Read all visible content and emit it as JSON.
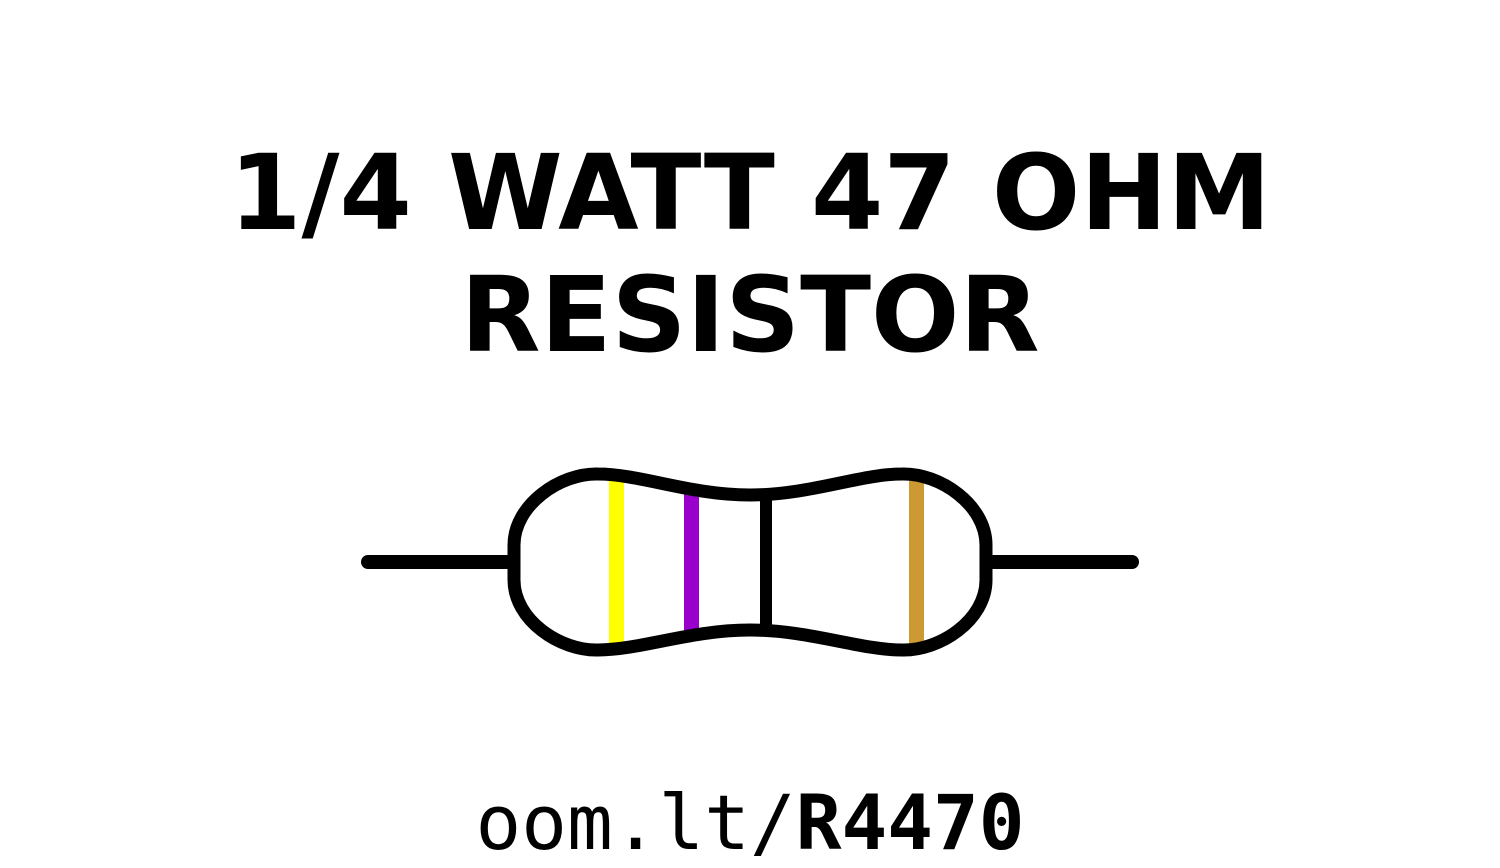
{
  "title": {
    "line1": "1/4 WATT 47 OHM",
    "line2": "RESISTOR"
  },
  "resistor": {
    "bands": [
      {
        "color": "#ffff00",
        "name": "yellow"
      },
      {
        "color": "#9900cc",
        "name": "violet"
      },
      {
        "color": "#cc9933",
        "name": "gold"
      }
    ],
    "outline_color": "#000000"
  },
  "url": {
    "prefix": "oom.lt/",
    "code": "R4470"
  }
}
